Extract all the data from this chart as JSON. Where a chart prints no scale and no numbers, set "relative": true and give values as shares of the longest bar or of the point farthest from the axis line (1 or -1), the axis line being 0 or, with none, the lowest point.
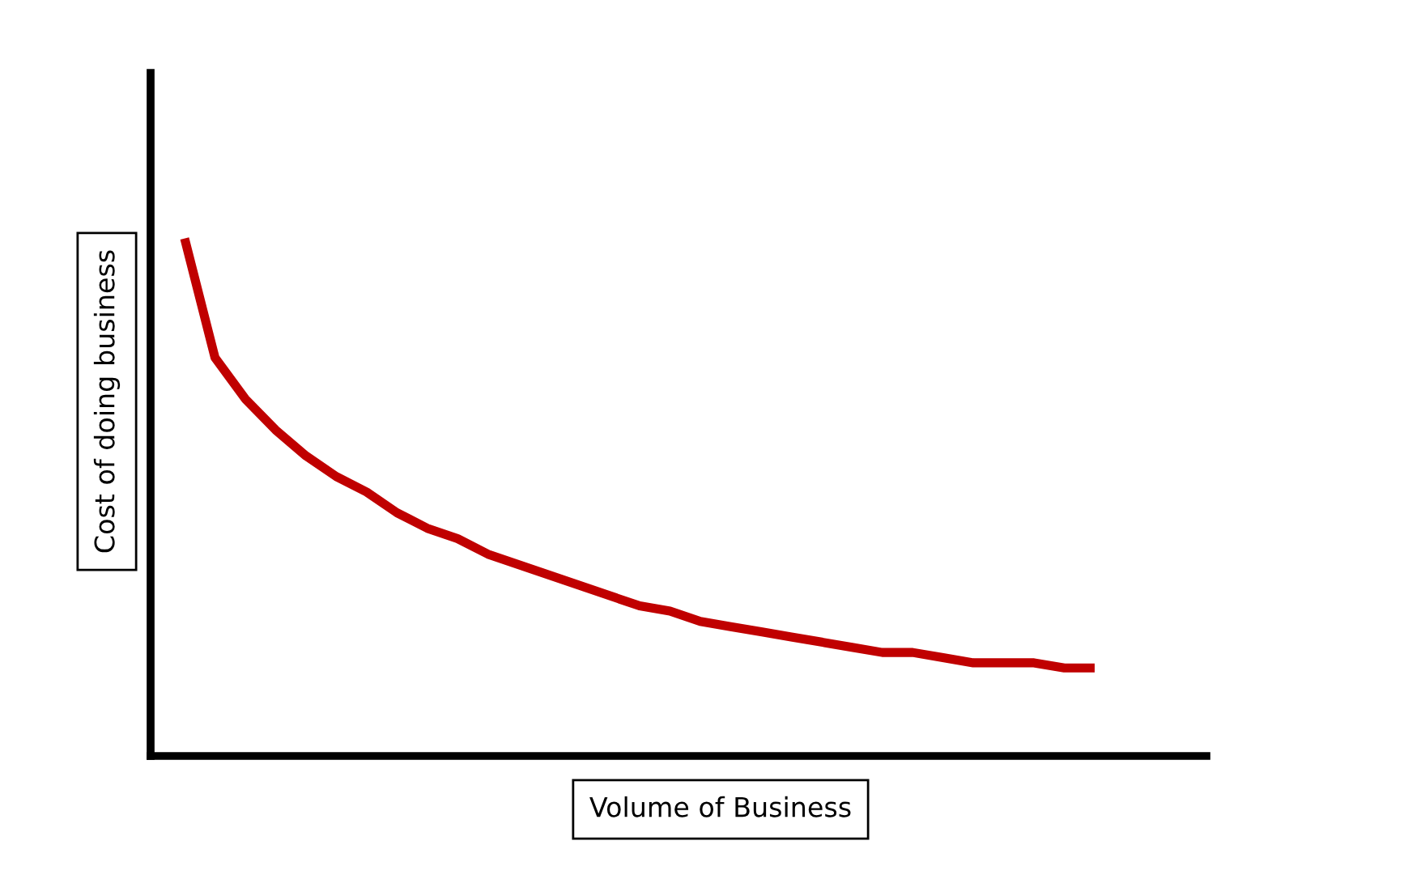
{
  "chart_data": {
    "type": "line",
    "relative": true,
    "xlabel": "Volume of Business",
    "ylabel": "Cost of doing business",
    "categories": [
      null,
      null,
      null,
      null,
      null,
      null,
      null,
      null,
      null,
      null,
      null,
      null,
      null,
      null,
      null,
      null,
      null,
      null,
      null,
      null,
      null,
      null,
      null,
      null,
      null,
      null,
      null,
      null,
      null,
      null,
      null
    ],
    "series": [
      {
        "color": "#c00000",
        "values": [
          1.0,
          0.77,
          0.69,
          0.63,
          0.58,
          0.54,
          0.51,
          0.47,
          0.44,
          0.42,
          0.39,
          0.37,
          0.35,
          0.33,
          0.31,
          0.29,
          0.28,
          0.26,
          0.25,
          0.24,
          0.23,
          0.22,
          0.21,
          0.2,
          0.2,
          0.19,
          0.18,
          0.18,
          0.18,
          0.17,
          0.17
        ]
      }
    ],
    "marker": "none",
    "line_style": "solid"
  }
}
